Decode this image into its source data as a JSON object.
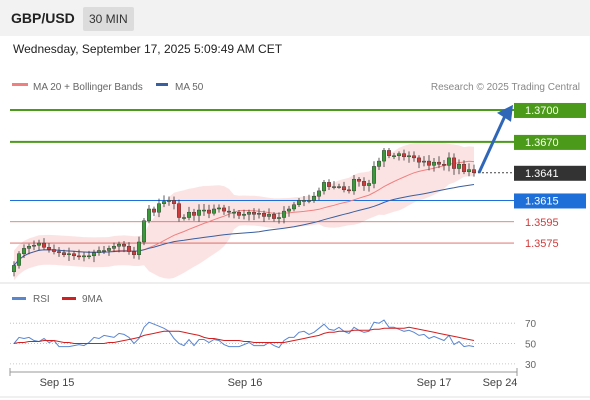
{
  "header": {
    "symbol": "GBP/USD",
    "timeframe": "30 MIN"
  },
  "timestamp": "Wednesday, September 17, 2025 5:09:49 AM CET",
  "copyright": "Research © 2025 Trading Central",
  "colors": {
    "candle_up": "#3a9a3a",
    "candle_down": "#d03a3a",
    "ma20": "#f08080",
    "bollinger_fill": "#fbdada",
    "ma50": "#3a5fa0",
    "target_green": "#4c9a1a",
    "pivot_blue": "#1f6fd8",
    "support_red": "#d03a3a",
    "last_price_box": "#333333",
    "rsi": "#5a86d0",
    "rsi_ma": "#d02020",
    "arrow": "#2f66b8"
  },
  "chart_data": [
    {
      "type": "candlestick",
      "title": "GBP/USD",
      "legend": [
        {
          "name": "MA 20 + Bollinger Bands",
          "color": "#f08080"
        },
        {
          "name": "MA 50",
          "color": "#3a5fa0"
        }
      ],
      "x_ticks": [
        "Sep 15",
        "Sep 16",
        "Sep 17",
        "Sep 24"
      ],
      "ylim": [
        1.3545,
        1.3715
      ],
      "levels": [
        {
          "value": 1.37,
          "label": "1.3700",
          "kind": "target"
        },
        {
          "value": 1.367,
          "label": "1.3670",
          "kind": "target"
        },
        {
          "value": 1.3641,
          "label": "1.3641",
          "kind": "last"
        },
        {
          "value": 1.3615,
          "label": "1.3615",
          "kind": "pivot"
        },
        {
          "value": 1.3595,
          "label": "1.3595",
          "kind": "support"
        },
        {
          "value": 1.3575,
          "label": "1.3575",
          "kind": "support"
        }
      ],
      "forecast_arrow": {
        "from": 1.3641,
        "to": 1.3702
      },
      "close": [
        1.3554,
        1.3565,
        1.357,
        1.3572,
        1.3573,
        1.3575,
        1.3571,
        1.3569,
        1.3567,
        1.3566,
        1.3564,
        1.3565,
        1.3563,
        1.3562,
        1.3563,
        1.3563,
        1.3566,
        1.3568,
        1.3568,
        1.357,
        1.3572,
        1.3574,
        1.3572,
        1.3567,
        1.3564,
        1.3576,
        1.3596,
        1.3607,
        1.3604,
        1.3612,
        1.3614,
        1.3615,
        1.3612,
        1.3599,
        1.3599,
        1.3604,
        1.3601,
        1.3606,
        1.3606,
        1.3603,
        1.3607,
        1.3608,
        1.3605,
        1.3604,
        1.3604,
        1.3601,
        1.3602,
        1.3604,
        1.3602,
        1.3603,
        1.36,
        1.3602,
        1.3598,
        1.3599,
        1.3605,
        1.3607,
        1.3611,
        1.3615,
        1.3615,
        1.3615,
        1.3619,
        1.3624,
        1.3632,
        1.3628,
        1.3628,
        1.3628,
        1.3625,
        1.3624,
        1.3635,
        1.3633,
        1.3629,
        1.3631,
        1.3647,
        1.3652,
        1.3662,
        1.3657,
        1.3657,
        1.3659,
        1.3656,
        1.3657,
        1.3655,
        1.3651,
        1.3652,
        1.3648,
        1.3651,
        1.3649,
        1.3648,
        1.3655,
        1.3645,
        1.3649,
        1.3642,
        1.3644,
        1.3641
      ]
    },
    {
      "type": "line",
      "title": "RSI",
      "legend": [
        {
          "name": "RSI",
          "color": "#5a86d0"
        },
        {
          "name": "9MA",
          "color": "#d02020"
        }
      ],
      "ylim": [
        25,
        80
      ],
      "y_ticks": [
        30,
        50,
        70
      ],
      "series": [
        {
          "name": "RSI",
          "values": [
            50,
            56,
            55,
            56,
            53,
            52,
            55,
            51,
            53,
            47,
            47,
            47,
            48,
            49,
            48,
            51,
            56,
            55,
            58,
            57,
            56,
            60,
            59,
            56,
            50,
            55,
            66,
            71,
            69,
            67,
            65,
            62,
            55,
            50,
            48,
            54,
            48,
            54,
            54,
            51,
            54,
            53,
            49,
            47,
            47,
            47,
            49,
            51,
            48,
            48,
            48,
            51,
            48,
            46,
            53,
            56,
            56,
            61,
            62,
            59,
            61,
            65,
            69,
            64,
            63,
            66,
            62,
            60,
            66,
            63,
            61,
            62,
            71,
            70,
            73,
            66,
            66,
            64,
            62,
            63,
            61,
            58,
            59,
            55,
            57,
            55,
            53,
            58,
            49,
            52,
            47,
            48,
            47
          ]
        },
        {
          "name": "9MA",
          "values": [
            50,
            51,
            51,
            52,
            52,
            52,
            53,
            53,
            53,
            52,
            51,
            51,
            50,
            50,
            50,
            50,
            50,
            50,
            50,
            51,
            51,
            52,
            53,
            54,
            55,
            56,
            58,
            59,
            60,
            61,
            62,
            62,
            62,
            62,
            61,
            60,
            59,
            58,
            56,
            55,
            55,
            54,
            53,
            53,
            53,
            53,
            52,
            52,
            51,
            51,
            51,
            51,
            51,
            51,
            51,
            52,
            53,
            54,
            55,
            56,
            57,
            58,
            60,
            61,
            61,
            62,
            62,
            62,
            63,
            63,
            63,
            63,
            64,
            64,
            65,
            65,
            65,
            65,
            65,
            66,
            65,
            64,
            63,
            62,
            61,
            60,
            59,
            58,
            57,
            56,
            55,
            54,
            53
          ]
        }
      ]
    }
  ]
}
